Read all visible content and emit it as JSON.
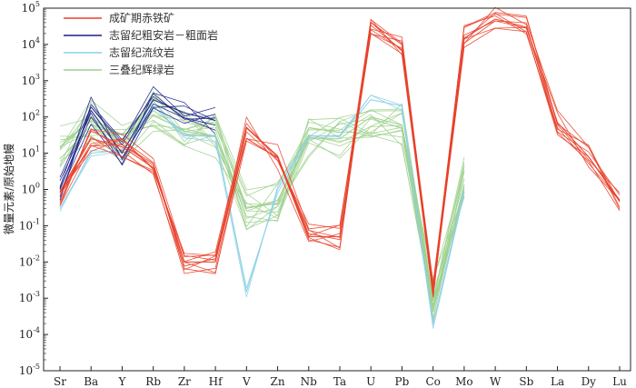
{
  "chart_data": {
    "type": "line",
    "title": "",
    "xlabel": "",
    "ylabel": "微量元素/原始地幔",
    "y_scale": "log",
    "ylim": [
      1e-05,
      100000
    ],
    "y_ticks": [
      {
        "base": "10",
        "exp": "-5"
      },
      {
        "base": "10",
        "exp": "-4"
      },
      {
        "base": "10",
        "exp": "-3"
      },
      {
        "base": "10",
        "exp": "-2"
      },
      {
        "base": "10",
        "exp": "-1"
      },
      {
        "base": "10",
        "exp": "0"
      },
      {
        "base": "10",
        "exp": "1"
      },
      {
        "base": "10",
        "exp": "2"
      },
      {
        "base": "10",
        "exp": "3"
      },
      {
        "base": "10",
        "exp": "4"
      },
      {
        "base": "10",
        "exp": "5"
      }
    ],
    "categories": [
      "Sr",
      "Ba",
      "Y",
      "Rb",
      "Zr",
      "Hf",
      "V",
      "Zn",
      "Nb",
      "Ta",
      "U",
      "Pb",
      "Co",
      "Mo",
      "W",
      "Sb",
      "La",
      "Dy",
      "Lu"
    ],
    "legend_position": "top-left",
    "series": [
      {
        "name": "成矿期赤铁矿",
        "color": "#e8402a",
        "values": [
          0.8,
          25,
          15,
          4,
          0.01,
          0.01,
          50,
          8,
          0.05,
          0.05,
          40000,
          10000,
          0.0025,
          15000,
          50000,
          30000,
          70,
          8,
          0.5
        ]
      },
      {
        "name": "志留纪粗安岩－粗面岩",
        "color": "#1c1f8a",
        "values": [
          1,
          150,
          10,
          300,
          130,
          80,
          null,
          null,
          null,
          null,
          null,
          null,
          null,
          null,
          null,
          null,
          null,
          null,
          null
        ]
      },
      {
        "name": "志留纪流纹岩",
        "color": "#8ccfe8",
        "values": [
          0.3,
          10,
          12,
          200,
          30,
          30,
          0.0015,
          1,
          30,
          30,
          300,
          200,
          0.0002,
          1,
          null,
          null,
          null,
          null,
          null
        ]
      },
      {
        "name": "三叠纪辉绿岩",
        "color": "#9fd08e",
        "values": [
          15,
          80,
          20,
          150,
          40,
          30,
          0.3,
          0.5,
          25,
          25,
          100,
          60,
          0.001,
          2,
          null,
          null,
          null,
          null,
          null
        ]
      }
    ]
  }
}
